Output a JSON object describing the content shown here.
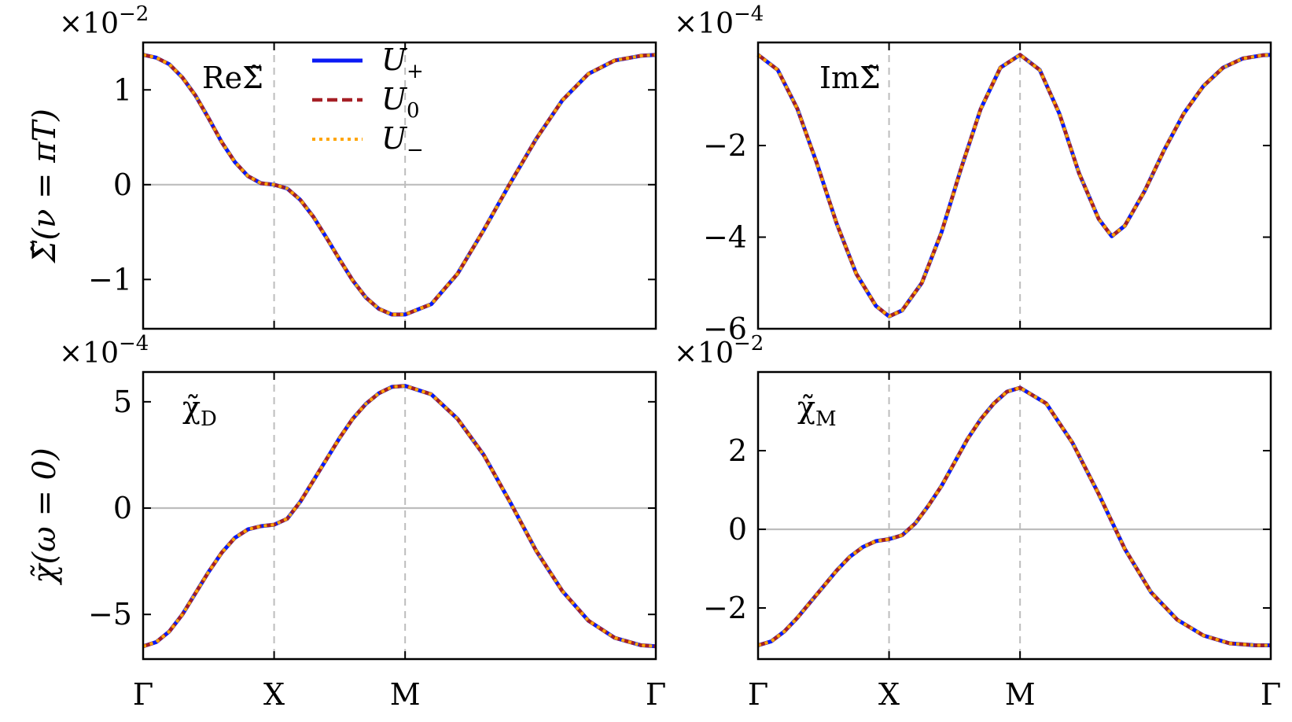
{
  "chart_data": [
    {
      "type": "line",
      "panel_label": "ReΣ̃",
      "ylabel": "Σ̃(ν = πT)",
      "exponent": "×10",
      "exponent_power": "−2",
      "x_tick_labels": [
        "Γ",
        "X",
        "M",
        "Γ"
      ],
      "ylim": [
        -1.52,
        1.5
      ],
      "yticks": [
        -1,
        0,
        1
      ],
      "ytick_labels": [
        "−1",
        "0",
        "1"
      ],
      "zero_line": true,
      "x": [
        0,
        0.1,
        0.2,
        0.3,
        0.4,
        0.5,
        0.6,
        0.7,
        0.8,
        0.9,
        1.0,
        1.1,
        1.2,
        1.3,
        1.4,
        1.5,
        1.6,
        1.7,
        1.8,
        1.9,
        2.0,
        2.2,
        2.4,
        2.6,
        2.8,
        3.0,
        3.2,
        3.4,
        3.6,
        3.8,
        3.914
      ],
      "series": [
        {
          "name": "U+",
          "color": "#0a1af5",
          "style": "solid",
          "values": [
            1.37,
            1.34,
            1.27,
            1.13,
            0.94,
            0.7,
            0.45,
            0.24,
            0.09,
            0.015,
            0.0,
            -0.04,
            -0.16,
            -0.34,
            -0.56,
            -0.79,
            -1.01,
            -1.19,
            -1.31,
            -1.37,
            -1.37,
            -1.26,
            -0.94,
            -0.48,
            0.01,
            0.48,
            0.89,
            1.17,
            1.31,
            1.36,
            1.37
          ]
        },
        {
          "name": "U0",
          "color": "#a51f25",
          "style": "dashed",
          "values": [
            1.37,
            1.34,
            1.27,
            1.13,
            0.94,
            0.7,
            0.45,
            0.24,
            0.09,
            0.015,
            0.0,
            -0.04,
            -0.16,
            -0.34,
            -0.56,
            -0.79,
            -1.01,
            -1.19,
            -1.31,
            -1.37,
            -1.37,
            -1.26,
            -0.94,
            -0.48,
            0.01,
            0.48,
            0.89,
            1.17,
            1.31,
            1.36,
            1.37
          ]
        },
        {
          "name": "U−",
          "color": "#ffa500",
          "style": "dotted",
          "values": [
            1.37,
            1.34,
            1.27,
            1.13,
            0.94,
            0.7,
            0.45,
            0.24,
            0.09,
            0.015,
            0.0,
            -0.04,
            -0.16,
            -0.34,
            -0.56,
            -0.79,
            -1.01,
            -1.19,
            -1.31,
            -1.37,
            -1.37,
            -1.26,
            -0.94,
            -0.48,
            0.01,
            0.48,
            0.89,
            1.17,
            1.31,
            1.36,
            1.37
          ]
        }
      ],
      "legend": {
        "placement": "top-center",
        "entries": [
          "U",
          "U",
          "U"
        ],
        "subscripts": [
          "+",
          "0",
          "−"
        ]
      }
    },
    {
      "type": "line",
      "panel_label": "ImΣ̃",
      "ylabel": "",
      "exponent": "×10",
      "exponent_power": "−4",
      "x_tick_labels": [
        "Γ",
        "X",
        "M",
        "Γ"
      ],
      "ylim": [
        -6.0,
        0.25
      ],
      "yticks": [
        -6,
        -4,
        -2
      ],
      "ytick_labels": [
        "−6",
        "−4",
        "−2"
      ],
      "zero_line": false,
      "x": [
        0,
        0.15,
        0.3,
        0.45,
        0.6,
        0.75,
        0.9,
        1.0,
        1.1,
        1.25,
        1.4,
        1.55,
        1.7,
        1.85,
        2.0,
        2.15,
        2.3,
        2.45,
        2.6,
        2.7,
        2.8,
        2.95,
        3.1,
        3.25,
        3.4,
        3.55,
        3.7,
        3.85,
        3.914
      ],
      "series": [
        {
          "name": "U+",
          "color": "#0a1af5",
          "style": "solid",
          "values": [
            -0.02,
            -0.35,
            -1.2,
            -2.4,
            -3.7,
            -4.8,
            -5.5,
            -5.73,
            -5.6,
            -5.0,
            -3.9,
            -2.5,
            -1.2,
            -0.3,
            -0.02,
            -0.35,
            -1.3,
            -2.6,
            -3.6,
            -3.98,
            -3.75,
            -3.0,
            -2.1,
            -1.3,
            -0.7,
            -0.3,
            -0.1,
            -0.03,
            -0.02
          ]
        },
        {
          "name": "U0",
          "color": "#a51f25",
          "style": "dashed",
          "values": [
            -0.02,
            -0.35,
            -1.2,
            -2.4,
            -3.7,
            -4.8,
            -5.5,
            -5.73,
            -5.6,
            -5.0,
            -3.9,
            -2.5,
            -1.2,
            -0.3,
            -0.02,
            -0.35,
            -1.3,
            -2.6,
            -3.6,
            -3.98,
            -3.75,
            -3.0,
            -2.1,
            -1.3,
            -0.7,
            -0.3,
            -0.1,
            -0.03,
            -0.02
          ]
        },
        {
          "name": "U−",
          "color": "#ffa500",
          "style": "dotted",
          "values": [
            -0.02,
            -0.35,
            -1.2,
            -2.4,
            -3.7,
            -4.8,
            -5.5,
            -5.73,
            -5.6,
            -5.0,
            -3.9,
            -2.5,
            -1.2,
            -0.3,
            -0.02,
            -0.35,
            -1.3,
            -2.6,
            -3.6,
            -3.98,
            -3.75,
            -3.0,
            -2.1,
            -1.3,
            -0.7,
            -0.3,
            -0.1,
            -0.03,
            -0.02
          ]
        }
      ]
    },
    {
      "type": "line",
      "panel_label": "χ̃",
      "panel_label_sub": "D",
      "ylabel": "χ̃(ω = 0)",
      "exponent": "×10",
      "exponent_power": "−4",
      "x_tick_labels": [
        "Γ",
        "X",
        "M",
        "Γ"
      ],
      "ylim": [
        -7.1,
        6.4
      ],
      "yticks": [
        -5,
        0,
        5
      ],
      "ytick_labels": [
        "−5",
        "0",
        "5"
      ],
      "zero_line": true,
      "x": [
        0,
        0.1,
        0.2,
        0.3,
        0.4,
        0.5,
        0.6,
        0.7,
        0.8,
        0.9,
        1.0,
        1.1,
        1.2,
        1.3,
        1.4,
        1.5,
        1.6,
        1.7,
        1.8,
        1.9,
        2.0,
        2.2,
        2.4,
        2.6,
        2.8,
        3.0,
        3.2,
        3.4,
        3.6,
        3.8,
        3.914
      ],
      "series": [
        {
          "name": "U+",
          "color": "#0a1af5",
          "style": "solid",
          "values": [
            -6.5,
            -6.3,
            -5.8,
            -5.0,
            -4.0,
            -3.0,
            -2.1,
            -1.4,
            -1.0,
            -0.85,
            -0.78,
            -0.5,
            0.3,
            1.3,
            2.3,
            3.3,
            4.2,
            4.9,
            5.4,
            5.7,
            5.75,
            5.35,
            4.2,
            2.5,
            0.3,
            -2.0,
            -3.9,
            -5.3,
            -6.1,
            -6.45,
            -6.5
          ]
        },
        {
          "name": "U0",
          "color": "#a51f25",
          "style": "dashed",
          "values": [
            -6.5,
            -6.3,
            -5.8,
            -5.0,
            -4.0,
            -3.0,
            -2.1,
            -1.4,
            -1.0,
            -0.85,
            -0.78,
            -0.5,
            0.3,
            1.3,
            2.3,
            3.3,
            4.2,
            4.9,
            5.4,
            5.7,
            5.75,
            5.35,
            4.2,
            2.5,
            0.3,
            -2.0,
            -3.9,
            -5.3,
            -6.1,
            -6.45,
            -6.5
          ]
        },
        {
          "name": "U−",
          "color": "#ffa500",
          "style": "dotted",
          "values": [
            -6.5,
            -6.3,
            -5.8,
            -5.0,
            -4.0,
            -3.0,
            -2.1,
            -1.4,
            -1.0,
            -0.85,
            -0.78,
            -0.5,
            0.3,
            1.3,
            2.3,
            3.3,
            4.2,
            4.9,
            5.4,
            5.7,
            5.75,
            5.35,
            4.2,
            2.5,
            0.3,
            -2.0,
            -3.9,
            -5.3,
            -6.1,
            -6.45,
            -6.5
          ]
        }
      ]
    },
    {
      "type": "line",
      "panel_label": "χ̃",
      "panel_label_sub": "M",
      "ylabel": "",
      "exponent": "×10",
      "exponent_power": "−2",
      "x_tick_labels": [
        "Γ",
        "X",
        "M",
        "Γ"
      ],
      "ylim": [
        -3.3,
        4.0
      ],
      "yticks": [
        -2,
        0,
        2
      ],
      "ytick_labels": [
        "−2",
        "0",
        "2"
      ],
      "zero_line": true,
      "x": [
        0,
        0.1,
        0.2,
        0.3,
        0.4,
        0.5,
        0.6,
        0.7,
        0.8,
        0.9,
        1.0,
        1.1,
        1.2,
        1.3,
        1.4,
        1.5,
        1.6,
        1.7,
        1.8,
        1.9,
        2.0,
        2.2,
        2.4,
        2.6,
        2.8,
        3.0,
        3.2,
        3.4,
        3.6,
        3.8,
        3.914
      ],
      "series": [
        {
          "name": "U+",
          "color": "#0a1af5",
          "style": "solid",
          "values": [
            -2.95,
            -2.85,
            -2.6,
            -2.25,
            -1.85,
            -1.45,
            -1.05,
            -0.7,
            -0.45,
            -0.3,
            -0.25,
            -0.15,
            0.15,
            0.6,
            1.1,
            1.7,
            2.3,
            2.8,
            3.2,
            3.5,
            3.6,
            3.2,
            2.2,
            0.9,
            -0.5,
            -1.6,
            -2.3,
            -2.7,
            -2.9,
            -2.95,
            -2.95
          ]
        },
        {
          "name": "U0",
          "color": "#a51f25",
          "style": "dashed",
          "values": [
            -2.95,
            -2.85,
            -2.6,
            -2.25,
            -1.85,
            -1.45,
            -1.05,
            -0.7,
            -0.45,
            -0.3,
            -0.25,
            -0.15,
            0.15,
            0.6,
            1.1,
            1.7,
            2.3,
            2.8,
            3.2,
            3.5,
            3.6,
            3.2,
            2.2,
            0.9,
            -0.5,
            -1.6,
            -2.3,
            -2.7,
            -2.9,
            -2.95,
            -2.95
          ]
        },
        {
          "name": "U−",
          "color": "#ffa500",
          "style": "dotted",
          "values": [
            -2.95,
            -2.85,
            -2.6,
            -2.25,
            -1.85,
            -1.45,
            -1.05,
            -0.7,
            -0.45,
            -0.3,
            -0.25,
            -0.15,
            0.15,
            0.6,
            1.1,
            1.7,
            2.3,
            2.8,
            3.2,
            3.5,
            3.6,
            3.2,
            2.2,
            0.9,
            -0.5,
            -1.6,
            -2.3,
            -2.7,
            -2.9,
            -2.95,
            -2.95
          ]
        }
      ]
    }
  ]
}
